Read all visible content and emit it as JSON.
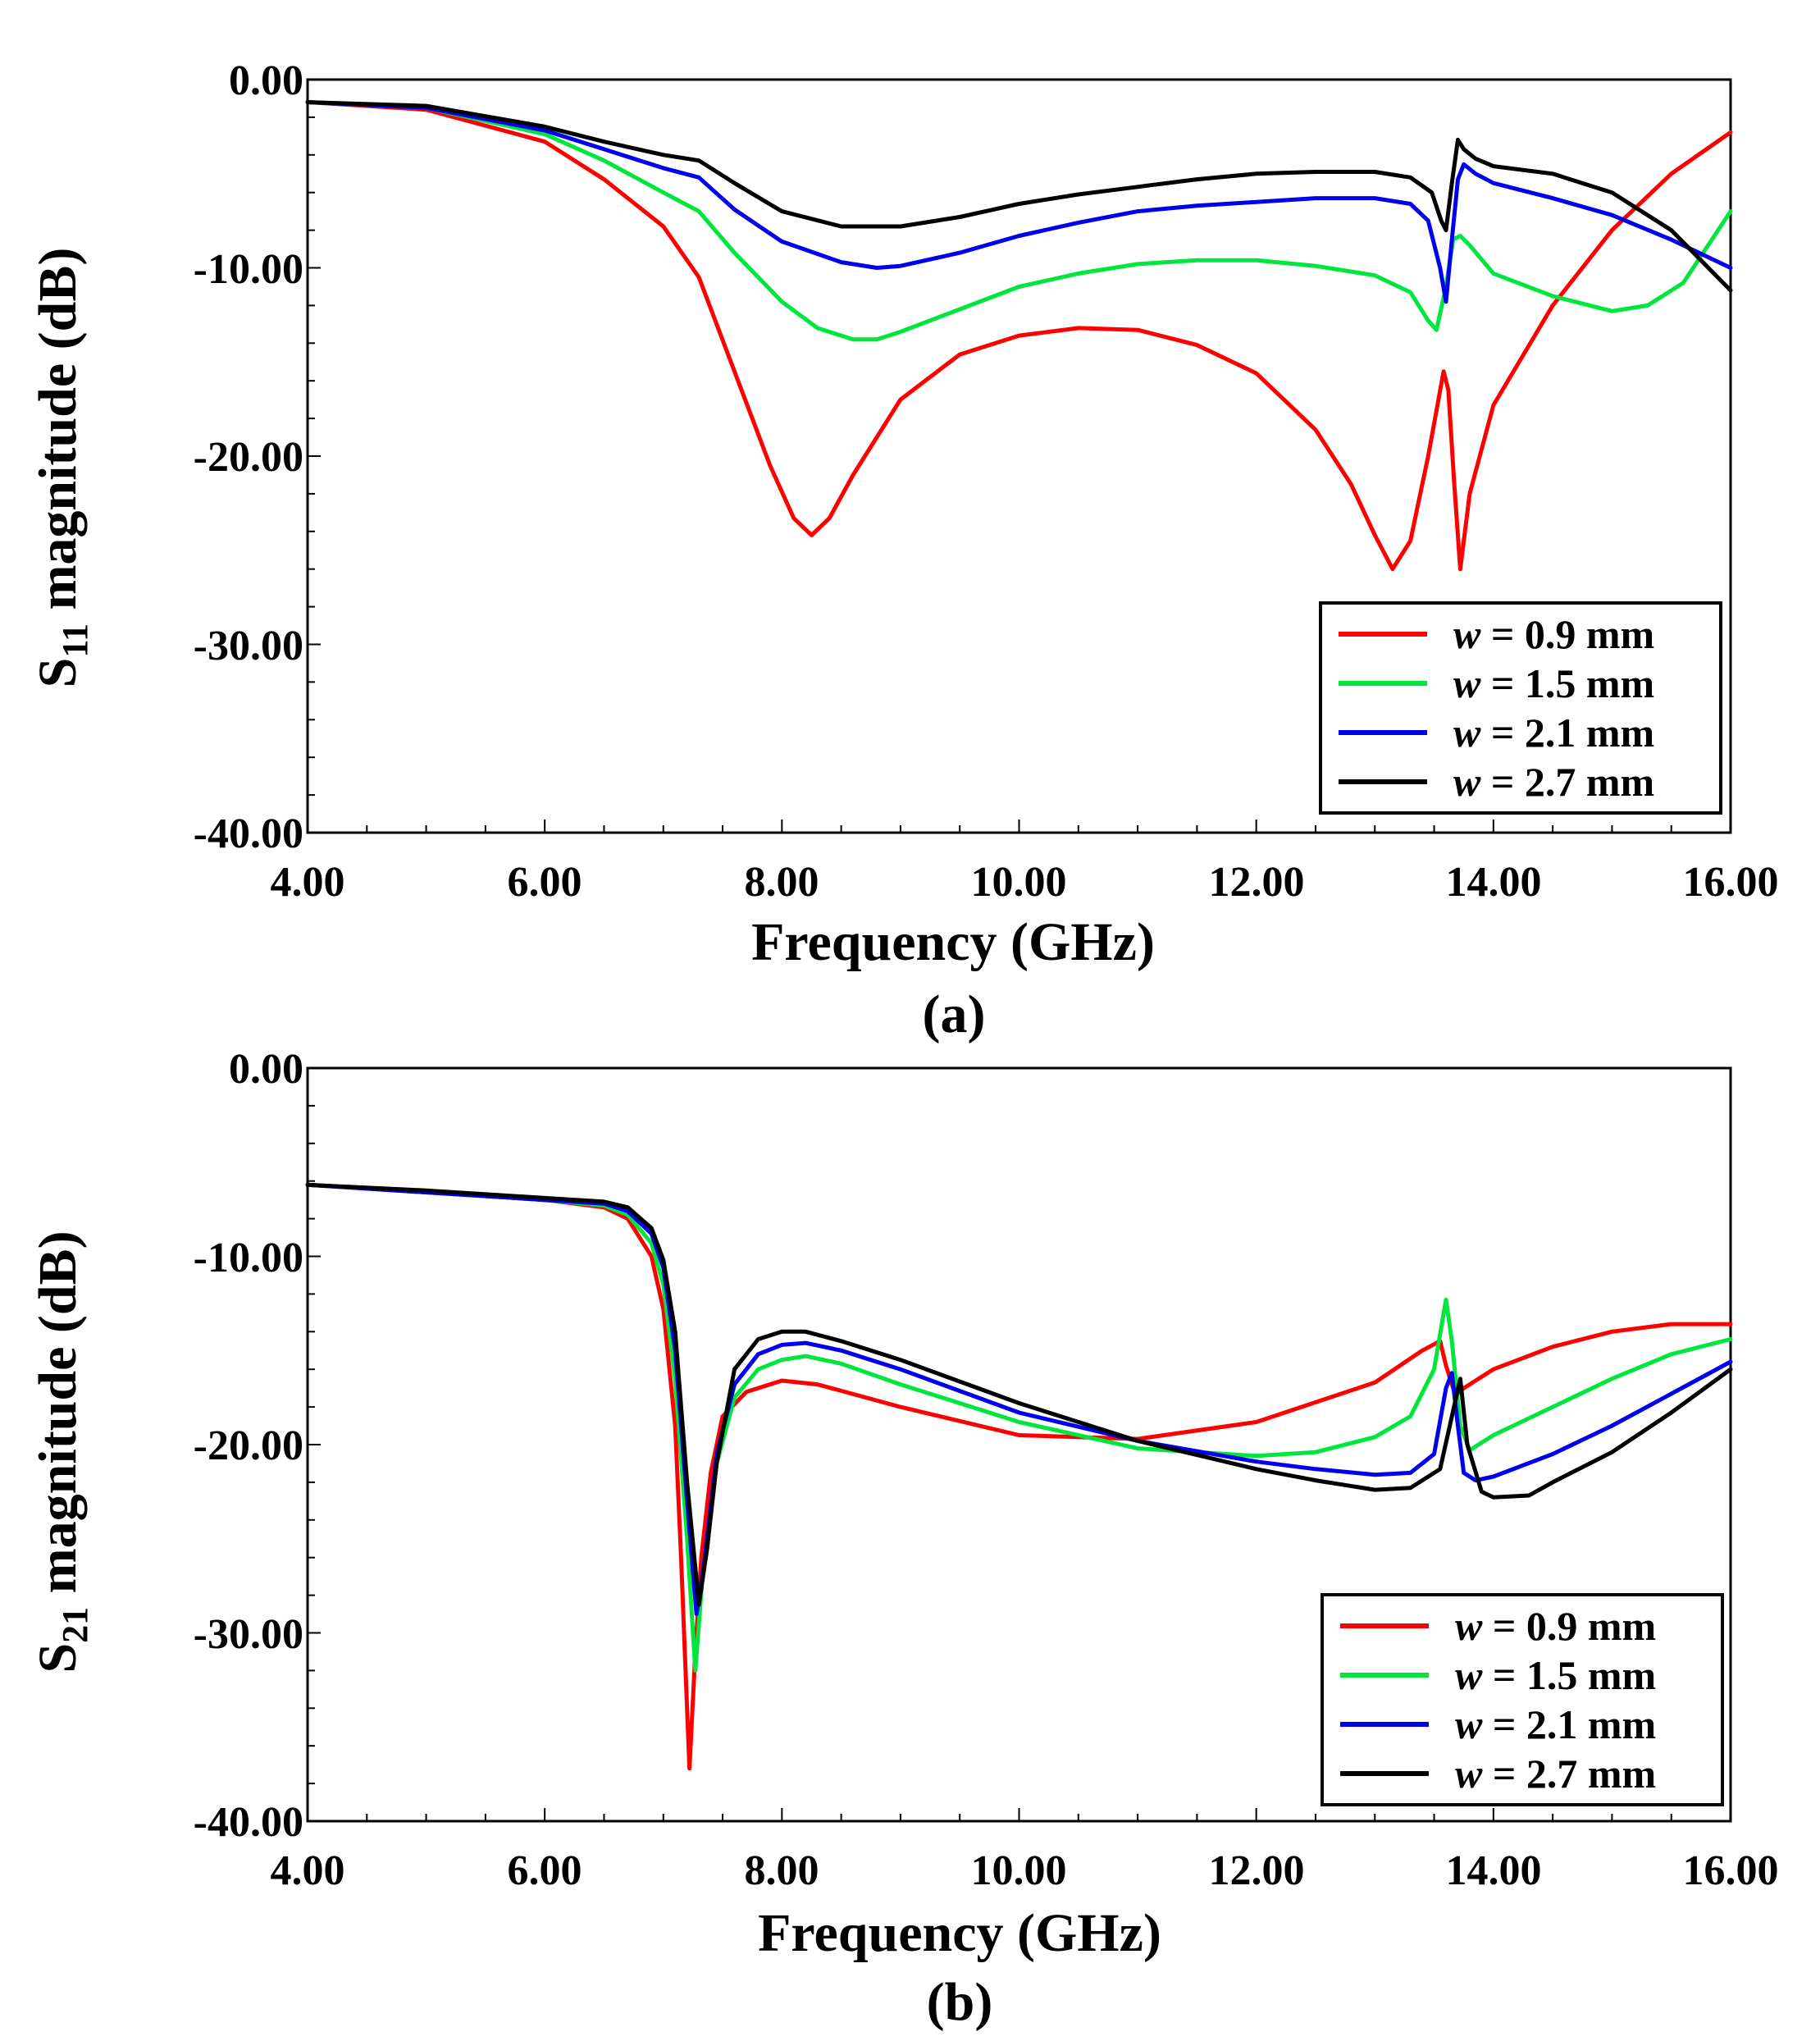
{
  "chart_data": [
    {
      "type": "line",
      "panel_label": "(a)",
      "ylabel": {
        "main": "S",
        "sub": "11",
        "rest": " magnitude (dB)"
      },
      "xlabel": "Frequency (GHz)",
      "xlim": [
        4,
        16
      ],
      "ylim": [
        -40,
        0
      ],
      "xticks": [
        "4.00",
        "6.00",
        "8.00",
        "10.00",
        "12.00",
        "14.00",
        "16.00"
      ],
      "yticks": [
        "0.00",
        "-10.00",
        "-20.00",
        "-30.00",
        "-40.00"
      ],
      "legend": {
        "placement": "bottom-right",
        "prefix": "w",
        "labels": [
          "= 0.9 mm",
          "= 1.5 mm",
          "= 2.1 mm",
          "= 2.7 mm"
        ]
      },
      "series": [
        {
          "name": "w = 0.9 mm",
          "color": "#ff0000",
          "x": [
            4.0,
            5.0,
            6.0,
            6.5,
            7.0,
            7.3,
            7.6,
            7.9,
            8.1,
            8.25,
            8.4,
            8.6,
            9.0,
            9.5,
            10.0,
            10.5,
            11.0,
            11.5,
            12.0,
            12.5,
            12.8,
            13.0,
            13.15,
            13.3,
            13.45,
            13.58,
            13.62,
            13.67,
            13.72,
            13.8,
            14.0,
            14.5,
            15.0,
            15.5,
            16.0
          ],
          "y": [
            -1.2,
            -1.6,
            -3.3,
            -5.3,
            -7.8,
            -10.5,
            -15.5,
            -20.5,
            -23.3,
            -24.2,
            -23.3,
            -21.0,
            -17.0,
            -14.6,
            -13.6,
            -13.2,
            -13.3,
            -14.1,
            -15.6,
            -18.6,
            -21.5,
            -24.2,
            -26.0,
            -24.5,
            -20.0,
            -15.5,
            -16.5,
            -21.5,
            -26.0,
            -22.0,
            -17.3,
            -12.0,
            -8.0,
            -5.0,
            -2.8
          ]
        },
        {
          "name": "w = 1.5 mm",
          "color": "#00e63c",
          "x": [
            4.0,
            5.0,
            6.0,
            6.5,
            7.0,
            7.3,
            7.6,
            8.0,
            8.3,
            8.6,
            8.8,
            9.0,
            9.5,
            10.0,
            10.5,
            11.0,
            11.5,
            12.0,
            12.5,
            13.0,
            13.3,
            13.45,
            13.52,
            13.6,
            13.66,
            13.72,
            13.8,
            14.0,
            14.5,
            15.0,
            15.3,
            15.6,
            16.0
          ],
          "y": [
            -1.2,
            -1.5,
            -2.9,
            -4.3,
            -6.0,
            -7.0,
            -9.2,
            -11.8,
            -13.2,
            -13.8,
            -13.8,
            -13.4,
            -12.2,
            -11.0,
            -10.3,
            -9.8,
            -9.6,
            -9.6,
            -9.9,
            -10.4,
            -11.3,
            -12.8,
            -13.3,
            -11.0,
            -8.5,
            -8.3,
            -8.8,
            -10.3,
            -11.5,
            -12.3,
            -12.0,
            -10.8,
            -7.0
          ]
        },
        {
          "name": "w = 2.1 mm",
          "color": "#0000ee",
          "x": [
            4.0,
            5.0,
            6.0,
            6.5,
            7.0,
            7.3,
            7.6,
            8.0,
            8.5,
            8.8,
            9.0,
            9.5,
            10.0,
            10.5,
            11.0,
            11.5,
            12.0,
            12.5,
            13.0,
            13.3,
            13.45,
            13.55,
            13.6,
            13.65,
            13.7,
            13.75,
            13.85,
            14.0,
            14.5,
            15.0,
            15.5,
            16.0
          ],
          "y": [
            -1.2,
            -1.5,
            -2.7,
            -3.7,
            -4.7,
            -5.2,
            -6.9,
            -8.6,
            -9.7,
            -10.0,
            -9.9,
            -9.2,
            -8.3,
            -7.6,
            -7.0,
            -6.7,
            -6.5,
            -6.3,
            -6.3,
            -6.6,
            -7.5,
            -10.0,
            -11.8,
            -8.5,
            -5.3,
            -4.5,
            -5.0,
            -5.5,
            -6.3,
            -7.2,
            -8.5,
            -10.0
          ]
        },
        {
          "name": "w = 2.7 mm",
          "color": "#000000",
          "x": [
            4.0,
            5.0,
            6.0,
            6.5,
            7.0,
            7.3,
            7.6,
            8.0,
            8.5,
            9.0,
            9.5,
            10.0,
            10.5,
            11.0,
            11.5,
            12.0,
            12.5,
            13.0,
            13.3,
            13.48,
            13.56,
            13.6,
            13.65,
            13.7,
            13.75,
            13.85,
            14.0,
            14.5,
            15.0,
            15.5,
            16.0
          ],
          "y": [
            -1.2,
            -1.4,
            -2.5,
            -3.3,
            -4.0,
            -4.3,
            -5.5,
            -7.0,
            -7.8,
            -7.8,
            -7.3,
            -6.6,
            -6.1,
            -5.7,
            -5.3,
            -5.0,
            -4.9,
            -4.9,
            -5.2,
            -6.0,
            -7.5,
            -8.0,
            -5.5,
            -3.2,
            -3.7,
            -4.2,
            -4.6,
            -5.0,
            -6.0,
            -8.0,
            -11.2
          ]
        }
      ]
    },
    {
      "type": "line",
      "panel_label": "(b)",
      "ylabel": {
        "main": "S",
        "sub": "21",
        "rest": " magnitude (dB)"
      },
      "xlabel": "Frequency (GHz)",
      "xlim": [
        4,
        16
      ],
      "ylim": [
        -40,
        0
      ],
      "xticks": [
        "4.00",
        "6.00",
        "8.00",
        "10.00",
        "12.00",
        "14.00",
        "16.00"
      ],
      "yticks": [
        "0.00",
        "-10.00",
        "-20.00",
        "-30.00",
        "-40.00"
      ],
      "legend": {
        "placement": "bottom-right",
        "prefix": "w",
        "labels": [
          "= 0.9 mm",
          "= 1.5 mm",
          "= 2.1 mm",
          "= 2.7 mm"
        ]
      },
      "series": [
        {
          "name": "w = 0.9 mm",
          "color": "#ff0000",
          "x": [
            4.0,
            5.0,
            6.0,
            6.5,
            6.7,
            6.9,
            7.0,
            7.1,
            7.15,
            7.22,
            7.27,
            7.32,
            7.4,
            7.5,
            7.7,
            8.0,
            8.3,
            9.0,
            10.0,
            11.0,
            12.0,
            13.0,
            13.4,
            13.55,
            13.6,
            13.68,
            13.75,
            14.0,
            14.5,
            15.0,
            15.5,
            16.0
          ],
          "y": [
            -6.2,
            -6.6,
            -7.0,
            -7.4,
            -8.0,
            -10.0,
            -12.8,
            -19.0,
            -26.0,
            -37.2,
            -31.0,
            -26.0,
            -21.5,
            -18.5,
            -17.2,
            -16.6,
            -16.8,
            -18.0,
            -19.5,
            -19.7,
            -18.8,
            -16.7,
            -15.0,
            -14.5,
            -15.8,
            -17.4,
            -17.0,
            -16.0,
            -14.8,
            -14.0,
            -13.6,
            -13.6
          ]
        },
        {
          "name": "w = 1.5 mm",
          "color": "#00e63c",
          "x": [
            4.0,
            5.0,
            6.0,
            6.5,
            6.7,
            6.9,
            7.0,
            7.1,
            7.2,
            7.27,
            7.33,
            7.45,
            7.6,
            7.8,
            8.0,
            8.2,
            8.5,
            9.0,
            10.0,
            11.0,
            12.0,
            12.5,
            13.0,
            13.3,
            13.5,
            13.6,
            13.65,
            13.72,
            13.8,
            14.0,
            14.5,
            15.0,
            15.5,
            16.0
          ],
          "y": [
            -6.2,
            -6.6,
            -7.0,
            -7.3,
            -7.8,
            -9.3,
            -11.5,
            -16.5,
            -25.0,
            -32.0,
            -27.0,
            -21.0,
            -17.5,
            -16.0,
            -15.5,
            -15.3,
            -15.7,
            -16.8,
            -18.8,
            -20.2,
            -20.6,
            -20.4,
            -19.6,
            -18.5,
            -16.0,
            -12.3,
            -14.5,
            -19.0,
            -20.3,
            -19.5,
            -18.0,
            -16.5,
            -15.2,
            -14.4
          ]
        },
        {
          "name": "w = 2.1 mm",
          "color": "#0000ee",
          "x": [
            4.0,
            5.0,
            6.0,
            6.5,
            6.7,
            6.9,
            7.0,
            7.1,
            7.2,
            7.28,
            7.35,
            7.45,
            7.6,
            7.8,
            8.0,
            8.2,
            8.5,
            9.0,
            10.0,
            11.0,
            12.0,
            12.5,
            13.0,
            13.3,
            13.5,
            13.6,
            13.65,
            13.7,
            13.75,
            13.85,
            14.0,
            14.5,
            15.0,
            15.5,
            16.0
          ],
          "y": [
            -6.2,
            -6.6,
            -7.0,
            -7.2,
            -7.6,
            -8.8,
            -10.6,
            -15.0,
            -23.0,
            -29.0,
            -26.0,
            -20.5,
            -16.8,
            -15.2,
            -14.7,
            -14.6,
            -15.0,
            -16.0,
            -18.3,
            -19.8,
            -20.9,
            -21.3,
            -21.6,
            -21.5,
            -20.5,
            -17.0,
            -16.2,
            -19.0,
            -21.5,
            -21.9,
            -21.7,
            -20.5,
            -19.0,
            -17.3,
            -15.6
          ]
        },
        {
          "name": "w = 2.7 mm",
          "color": "#000000",
          "x": [
            4.0,
            5.0,
            6.0,
            6.5,
            6.7,
            6.9,
            7.0,
            7.1,
            7.2,
            7.3,
            7.37,
            7.45,
            7.6,
            7.8,
            8.0,
            8.2,
            8.5,
            9.0,
            10.0,
            11.0,
            12.0,
            12.5,
            13.0,
            13.3,
            13.55,
            13.65,
            13.72,
            13.78,
            13.9,
            14.0,
            14.3,
            14.5,
            15.0,
            15.5,
            16.0
          ],
          "y": [
            -6.2,
            -6.5,
            -6.9,
            -7.1,
            -7.4,
            -8.5,
            -10.2,
            -14.0,
            -22.0,
            -28.5,
            -25.5,
            -21.0,
            -16.0,
            -14.4,
            -14.0,
            -14.0,
            -14.5,
            -15.5,
            -17.8,
            -19.8,
            -21.3,
            -21.9,
            -22.4,
            -22.3,
            -21.3,
            -18.5,
            -16.5,
            -20.0,
            -22.5,
            -22.8,
            -22.7,
            -22.0,
            -20.4,
            -18.3,
            -16.0
          ]
        }
      ]
    }
  ]
}
